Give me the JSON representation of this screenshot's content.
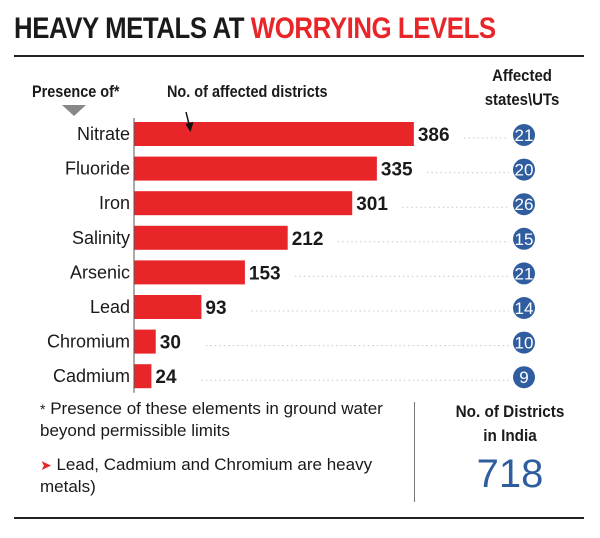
{
  "header": {
    "title_part1": "HEAVY METALS AT",
    "title_part2": "WORRYING LEVELS",
    "presence_label": "Presence of*",
    "districts_label": "No. of affected districts",
    "states_label_line1": "Affected",
    "states_label_line2": "states\\UTs"
  },
  "chart_data": {
    "type": "bar",
    "orientation": "horizontal",
    "categories": [
      "Nitrate",
      "Fluoride",
      "Iron",
      "Salinity",
      "Arsenic",
      "Lead",
      "Chromium",
      "Cadmium"
    ],
    "values": [
      386,
      335,
      301,
      212,
      153,
      93,
      30,
      24
    ],
    "states_uts": [
      "21",
      "20",
      "26",
      "15",
      "21",
      "14",
      "10",
      "9"
    ],
    "bar_color": "#e8262a",
    "circle_color": "#2f5d9f"
  },
  "notes": {
    "footnote_star": "*",
    "footnote_text": "Presence of these elements in ground water beyond permissible limits",
    "arrow": "➤",
    "heavy_metals_text": "Lead, Cadmium and Chromium are heavy metals)"
  },
  "summary": {
    "label_line1": "No. of Districts",
    "label_line2": "in India",
    "value": "718"
  }
}
